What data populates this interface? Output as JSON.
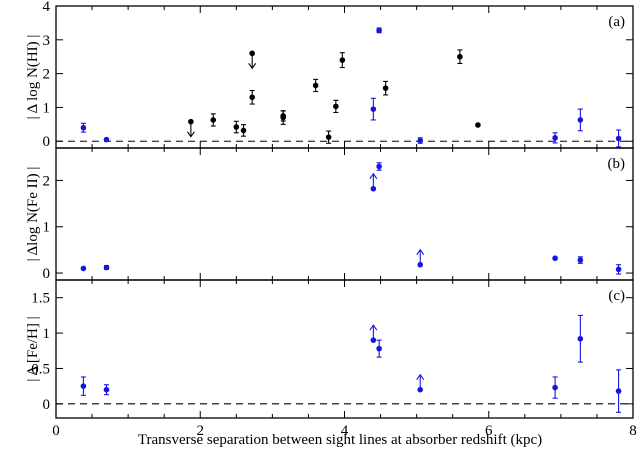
{
  "chart_data": {
    "type": "scatter",
    "xlabel": "Transverse separation between sight lines at absorber redshift (kpc)",
    "xlim": [
      0,
      8
    ],
    "xticks": [
      "0",
      "2",
      "4",
      "6",
      "8"
    ],
    "colors": {
      "blue": "#1515e0",
      "black": "#000000"
    },
    "panels": [
      {
        "tag": "(a)",
        "ylabel": "| Δ log N(HI) |",
        "ylim": [
          -0.2,
          4
        ],
        "yticks": [
          "0",
          "1",
          "2",
          "3",
          "4"
        ],
        "reference_line": 0,
        "series": [
          {
            "color": "blue",
            "points": [
              {
                "x": 0.38,
                "y": 0.4,
                "err": 0.13
              },
              {
                "x": 0.7,
                "y": 0.05,
                "err": 0.0
              },
              {
                "x": 4.4,
                "y": 0.95,
                "err": 0.32
              },
              {
                "x": 4.48,
                "y": 3.28,
                "err": 0.07
              },
              {
                "x": 5.05,
                "y": 0.02,
                "err": 0.08
              },
              {
                "x": 6.92,
                "y": 0.1,
                "err": 0.15
              },
              {
                "x": 7.27,
                "y": 0.63,
                "err": 0.32
              },
              {
                "x": 7.8,
                "y": 0.08,
                "err": 0.25
              }
            ]
          },
          {
            "color": "black",
            "points": [
              {
                "x": 1.87,
                "y": 0.58,
                "err": 0.0,
                "limit": "upper"
              },
              {
                "x": 2.18,
                "y": 0.63,
                "err": 0.18
              },
              {
                "x": 2.5,
                "y": 0.42,
                "err": 0.17
              },
              {
                "x": 2.6,
                "y": 0.32,
                "err": 0.17
              },
              {
                "x": 2.72,
                "y": 2.6,
                "err": 0.0,
                "limit": "upper"
              },
              {
                "x": 2.72,
                "y": 1.3,
                "err": 0.2
              },
              {
                "x": 3.15,
                "y": 0.75,
                "err": 0.15
              },
              {
                "x": 3.15,
                "y": 0.7,
                "err": 0.2
              },
              {
                "x": 3.6,
                "y": 1.65,
                "err": 0.18
              },
              {
                "x": 3.78,
                "y": 0.12,
                "err": 0.18
              },
              {
                "x": 3.88,
                "y": 1.03,
                "err": 0.18
              },
              {
                "x": 3.97,
                "y": 2.4,
                "err": 0.22
              },
              {
                "x": 4.57,
                "y": 1.57,
                "err": 0.2
              },
              {
                "x": 5.6,
                "y": 2.5,
                "err": 0.2
              },
              {
                "x": 5.85,
                "y": 0.48,
                "err": 0.0
              }
            ]
          }
        ]
      },
      {
        "tag": "(b)",
        "ylabel": "| Δlog N(Fe II) |",
        "ylim": [
          -0.15,
          2.7
        ],
        "yticks": [
          "0",
          "1",
          "2"
        ],
        "reference_line": null,
        "series": [
          {
            "color": "blue",
            "points": [
              {
                "x": 0.38,
                "y": 0.1,
                "err": 0.0
              },
              {
                "x": 0.7,
                "y": 0.12,
                "err": 0.04
              },
              {
                "x": 4.4,
                "y": 1.82,
                "err": 0.0,
                "limit": "lower"
              },
              {
                "x": 4.48,
                "y": 2.3,
                "err": 0.08
              },
              {
                "x": 5.05,
                "y": 0.18,
                "err": 0.0,
                "limit": "lower"
              },
              {
                "x": 6.92,
                "y": 0.32,
                "err": 0.0
              },
              {
                "x": 7.27,
                "y": 0.28,
                "err": 0.07
              },
              {
                "x": 7.8,
                "y": 0.08,
                "err": 0.1
              }
            ]
          }
        ]
      },
      {
        "tag": "(c)",
        "ylabel": "| Δ [Fe/H] |",
        "ylim": [
          -0.2,
          1.75
        ],
        "yticks": [
          "0",
          "0.5",
          "1",
          "1.5"
        ],
        "reference_line": 0,
        "series": [
          {
            "color": "blue",
            "points": [
              {
                "x": 0.38,
                "y": 0.25,
                "err": 0.13
              },
              {
                "x": 0.7,
                "y": 0.2,
                "err": 0.07
              },
              {
                "x": 4.4,
                "y": 0.9,
                "err": 0.0,
                "limit": "lower"
              },
              {
                "x": 4.48,
                "y": 0.78,
                "err": 0.12
              },
              {
                "x": 5.05,
                "y": 0.2,
                "err": 0.0,
                "limit": "lower"
              },
              {
                "x": 6.92,
                "y": 0.23,
                "err": 0.15
              },
              {
                "x": 7.27,
                "y": 0.92,
                "err": 0.33
              },
              {
                "x": 7.8,
                "y": 0.18,
                "err": 0.3
              }
            ]
          }
        ]
      }
    ]
  }
}
